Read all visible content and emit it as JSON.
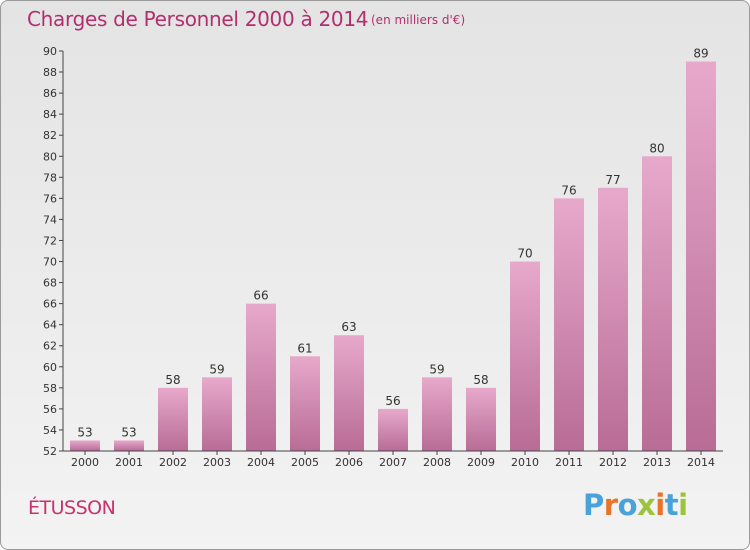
{
  "header": {
    "title": "Charges de Personnel 2000 à 2014",
    "unit": "(en milliers d'€)"
  },
  "footer": {
    "commune": "ÉTUSSON",
    "brand": "Proxiti"
  },
  "colors": {
    "bar_light": "#e7a9cb",
    "bar_dark": "#b86c96",
    "title": "#b22f6e",
    "brand_letters": [
      "#4aa3d8",
      "#e8742a",
      "#4aa3d8",
      "#9bc43a",
      "#e8742a",
      "#4aa3d8",
      "#9bc43a"
    ]
  },
  "chart_data": {
    "type": "bar",
    "title": "Charges de Personnel 2000 à 2014",
    "subtitle": "(en milliers d'€)",
    "categories": [
      "2000",
      "2001",
      "2002",
      "2003",
      "2004",
      "2005",
      "2006",
      "2007",
      "2008",
      "2009",
      "2010",
      "2011",
      "2012",
      "2013",
      "2014"
    ],
    "values": [
      53,
      53,
      58,
      59,
      66,
      61,
      63,
      56,
      59,
      58,
      70,
      76,
      77,
      80,
      89
    ],
    "ylim": [
      52,
      90
    ],
    "yticks": [
      52,
      54,
      56,
      58,
      60,
      62,
      64,
      66,
      68,
      70,
      72,
      74,
      76,
      78,
      80,
      82,
      84,
      86,
      88,
      90
    ],
    "grid": false,
    "legend": "none"
  }
}
